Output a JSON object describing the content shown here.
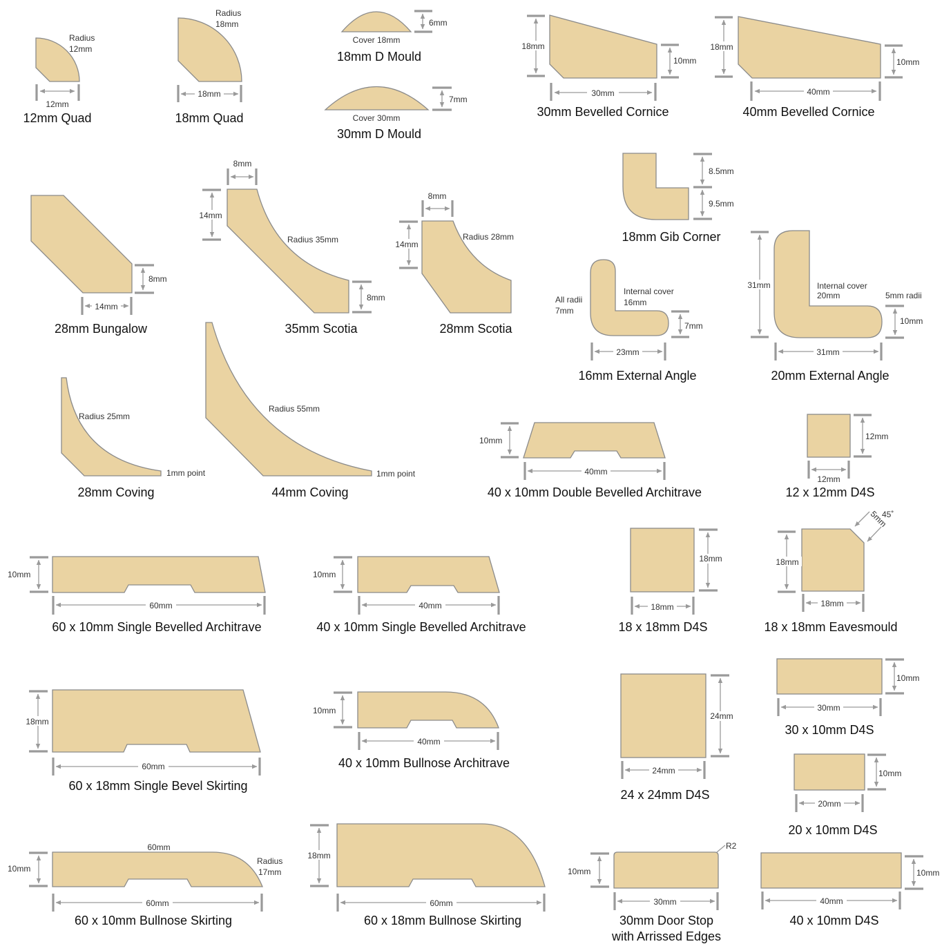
{
  "mouldings": [
    {
      "id": "quad12",
      "title": "12mm Quad",
      "labels": [
        "Radius",
        "12mm",
        "12mm"
      ]
    },
    {
      "id": "quad18",
      "title": "18mm Quad",
      "labels": [
        "Radius",
        "18mm",
        "18mm"
      ]
    },
    {
      "id": "dmould18",
      "title": "18mm D Mould",
      "labels": [
        "Cover 18mm",
        "6mm"
      ]
    },
    {
      "id": "dmould30",
      "title": "30mm D Mould",
      "labels": [
        "Cover 30mm",
        "7mm"
      ]
    },
    {
      "id": "cornice30",
      "title": "30mm Bevelled Cornice",
      "labels": [
        "18mm",
        "10mm",
        "30mm"
      ]
    },
    {
      "id": "cornice40",
      "title": "40mm Bevelled Cornice",
      "labels": [
        "18mm",
        "10mm",
        "40mm"
      ]
    },
    {
      "id": "bungalow28",
      "title": "28mm Bungalow",
      "labels": [
        "8mm",
        "14mm"
      ]
    },
    {
      "id": "scotia35",
      "title": "35mm Scotia",
      "labels": [
        "8mm",
        "14mm",
        "Radius 35mm",
        "8mm"
      ]
    },
    {
      "id": "scotia28",
      "title": "28mm Scotia",
      "labels": [
        "8mm",
        "14mm",
        "Radius 28mm"
      ]
    },
    {
      "id": "gib18",
      "title": "18mm Gib Corner",
      "labels": [
        "8.5mm",
        "9.5mm"
      ]
    },
    {
      "id": "extangle16",
      "title": "16mm External Angle",
      "labels": [
        "All radii",
        "7mm",
        "Internal cover",
        "16mm",
        "7mm",
        "23mm"
      ]
    },
    {
      "id": "extangle20",
      "title": "20mm External Angle",
      "labels": [
        "31mm",
        "Internal cover",
        "20mm",
        "5mm radii",
        "10mm",
        "31mm"
      ]
    },
    {
      "id": "coving28",
      "title": "28mm Coving",
      "labels": [
        "Radius 25mm",
        "1mm point"
      ]
    },
    {
      "id": "coving44",
      "title": "44mm Coving",
      "labels": [
        "Radius 55mm",
        "1mm point"
      ]
    },
    {
      "id": "dba40",
      "title": "40 x 10mm Double Bevelled Architrave",
      "labels": [
        "10mm",
        "40mm"
      ]
    },
    {
      "id": "d4s12",
      "title": "12 x 12mm D4S",
      "labels": [
        "12mm",
        "12mm"
      ]
    },
    {
      "id": "sba60",
      "title": "60 x 10mm Single Bevelled Architrave",
      "labels": [
        "10mm",
        "60mm"
      ]
    },
    {
      "id": "sba40",
      "title": "40 x 10mm Single Bevelled Architrave",
      "labels": [
        "10mm",
        "40mm"
      ]
    },
    {
      "id": "d4s18",
      "title": "18 x 18mm D4S",
      "labels": [
        "18mm",
        "18mm"
      ]
    },
    {
      "id": "eaves18",
      "title": "18 x 18mm Eavesmould",
      "labels": [
        "5mm",
        "45˚",
        "18mm",
        "18mm"
      ]
    },
    {
      "id": "sbs60",
      "title": "60 x 18mm Single Bevel Skirting",
      "labels": [
        "18mm",
        "60mm"
      ]
    },
    {
      "id": "bna40",
      "title": "40 x 10mm Bullnose Architrave",
      "labels": [
        "10mm",
        "40mm"
      ]
    },
    {
      "id": "d4s24",
      "title": "24 x 24mm D4S",
      "labels": [
        "24mm",
        "24mm"
      ]
    },
    {
      "id": "d4s3010",
      "title": "30 x 10mm D4S",
      "labels": [
        "10mm",
        "30mm"
      ]
    },
    {
      "id": "d4s2010",
      "title": "20 x 10mm D4S",
      "labels": [
        "10mm",
        "20mm"
      ]
    },
    {
      "id": "bns60",
      "title": "60 x 10mm Bullnose Skirting",
      "labels": [
        "60mm",
        "Radius",
        "17mm",
        "10mm",
        "60mm"
      ]
    },
    {
      "id": "bns6018",
      "title": "60 x 18mm Bullnose Skirting",
      "labels": [
        "18mm",
        "60mm"
      ]
    },
    {
      "id": "doorstop30",
      "title": "30mm Door Stop",
      "title2": "with Arrissed Edges",
      "labels": [
        "R2",
        "10mm",
        "30mm"
      ]
    },
    {
      "id": "d4s4010",
      "title": "40 x 10mm D4S",
      "labels": [
        "10mm",
        "40mm"
      ]
    }
  ]
}
